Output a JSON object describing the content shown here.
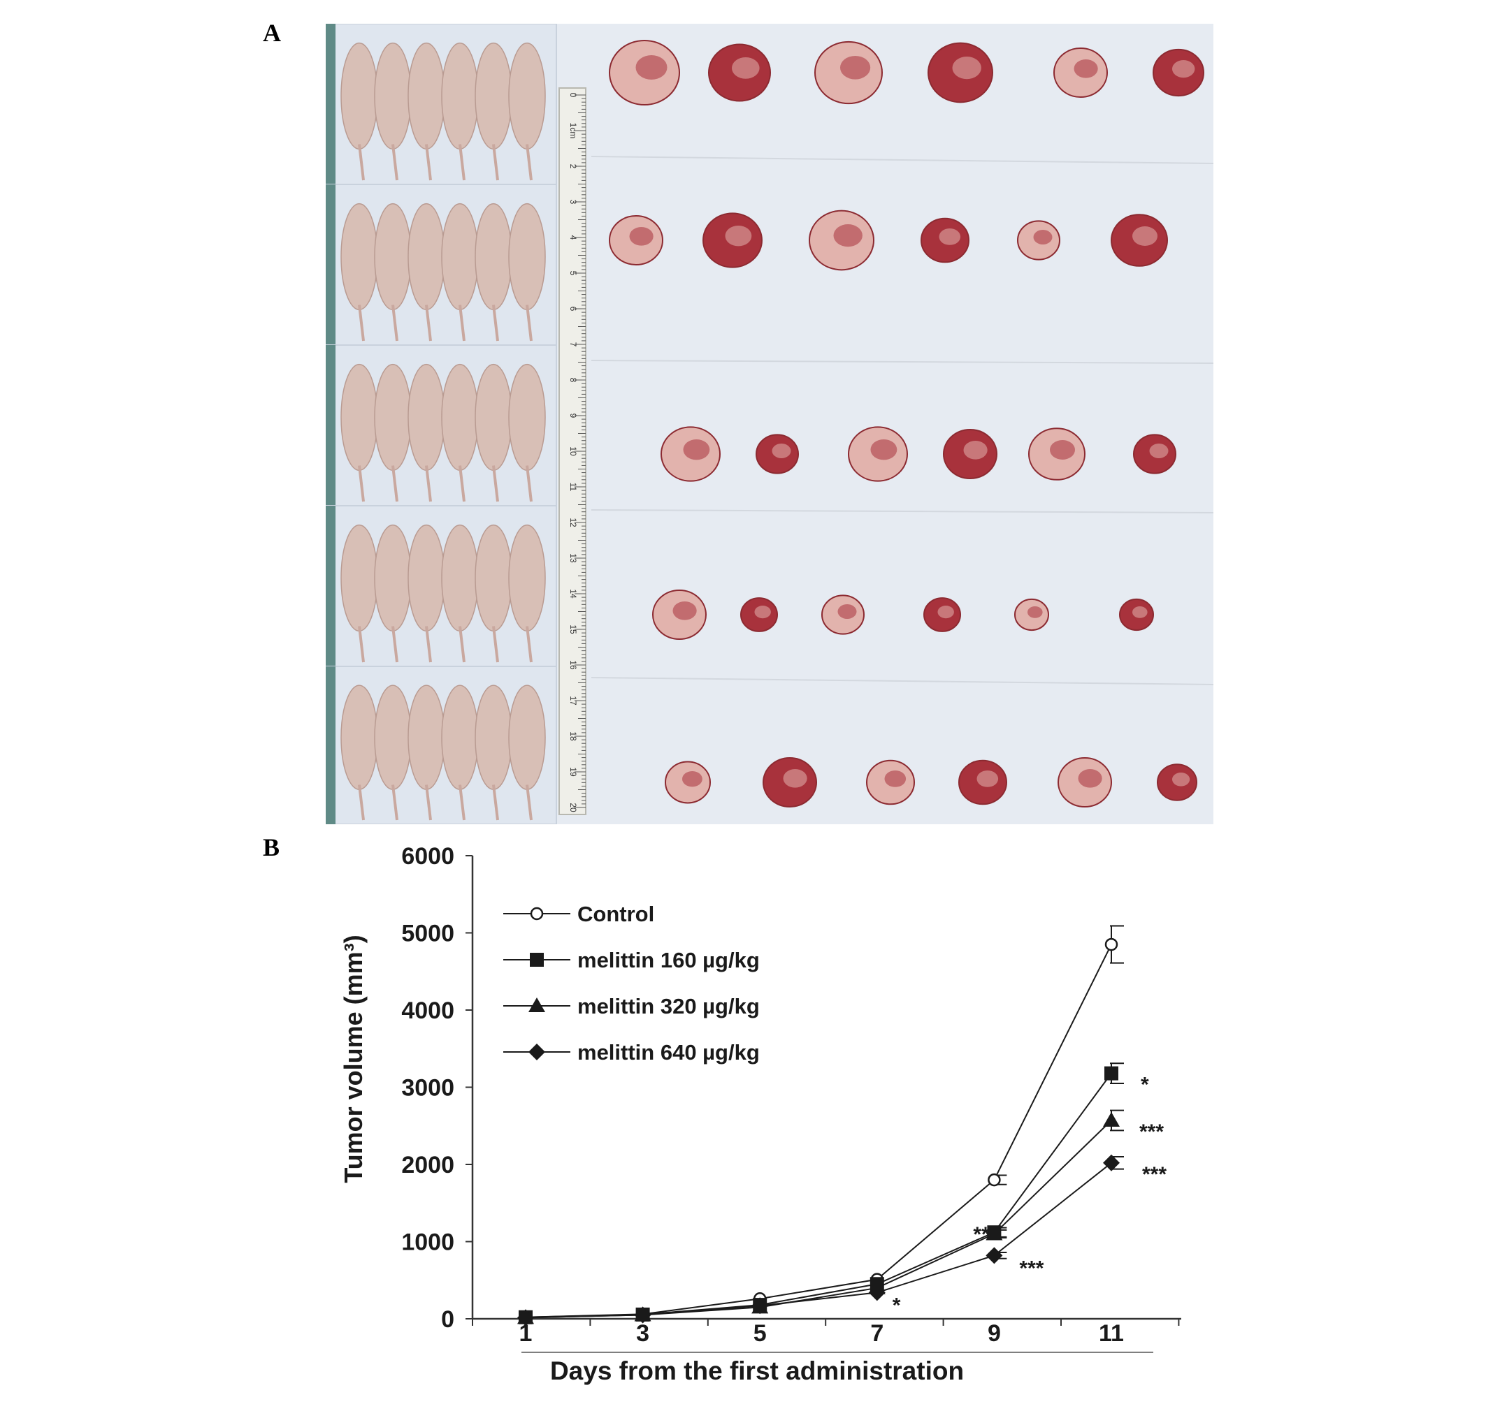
{
  "figure": {
    "panel_a_label": "A",
    "panel_b_label": "B",
    "ruler_labels": [
      "0",
      "1cm",
      "2",
      "3",
      "4",
      "5",
      "6",
      "7",
      "8",
      "9",
      "10",
      "11",
      "12",
      "13",
      "14",
      "15",
      "16",
      "17",
      "18",
      "19",
      "20"
    ]
  },
  "colors": {
    "photo_background": "#e6ebf2",
    "mouse_skin": "#d8bfb6",
    "tumor_red": "#a8323c",
    "tumor_pale": "#e2b3ad",
    "ruler": "#efefe9"
  },
  "chart_data": {
    "type": "line",
    "x": [
      1,
      3,
      5,
      7,
      9,
      11
    ],
    "xticks": [
      "1",
      "3",
      "5",
      "7",
      "9",
      "11"
    ],
    "xlabel": "Days from the first administration",
    "ylabel": "Tumor volume (mm³)",
    "ylim": [
      0,
      6000
    ],
    "yticks": [
      "0",
      "1000",
      "2000",
      "3000",
      "4000",
      "5000",
      "6000"
    ],
    "legend_position": "top-left",
    "grid": false,
    "series": [
      {
        "name": "Control",
        "marker": "open-circle",
        "values": [
          20,
          60,
          260,
          510,
          1800,
          4850
        ],
        "errors": [
          0,
          0,
          0,
          0,
          60,
          240
        ]
      },
      {
        "name": "melittin 160 µg/kg",
        "marker": "filled-square",
        "values": [
          20,
          55,
          180,
          450,
          1120,
          3180
        ],
        "errors": [
          0,
          0,
          0,
          0,
          60,
          130
        ]
      },
      {
        "name": "melittin 320 µg/kg",
        "marker": "filled-triangle",
        "values": [
          15,
          50,
          150,
          400,
          1100,
          2570
        ],
        "errors": [
          0,
          0,
          0,
          0,
          50,
          130
        ]
      },
      {
        "name": "melittin 640 µg/kg",
        "marker": "filled-diamond",
        "values": [
          15,
          50,
          170,
          340,
          820,
          2020
        ],
        "errors": [
          0,
          0,
          0,
          0,
          40,
          80
        ]
      }
    ],
    "annotations": [
      {
        "text": "*",
        "x": 11,
        "y": 3180
      },
      {
        "text": "***",
        "x": 11,
        "y": 2570
      },
      {
        "text": "***",
        "x": 11,
        "y": 2020
      },
      {
        "text": "**",
        "x": 9,
        "y": 1350
      },
      {
        "text": "***",
        "x": 9,
        "y": 820
      },
      {
        "text": "*",
        "x": 7,
        "y": 340
      }
    ]
  }
}
